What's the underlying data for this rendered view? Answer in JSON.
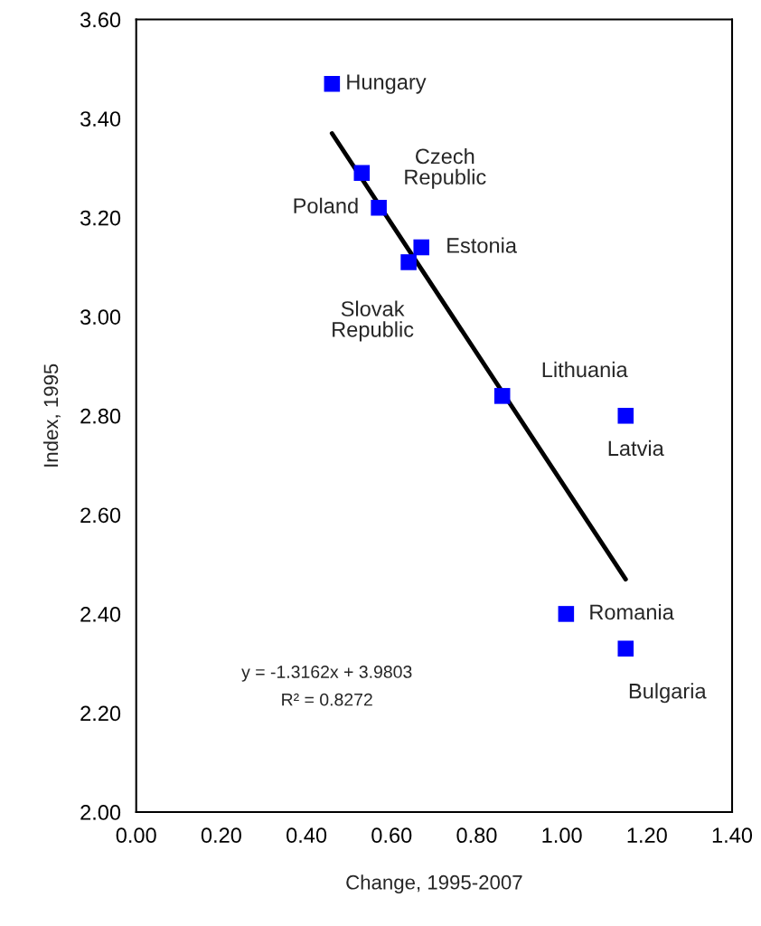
{
  "chart_data": {
    "type": "scatter",
    "xlabel": "Change, 1995-2007",
    "ylabel": "Index, 1995",
    "xlim": [
      0,
      1.4
    ],
    "ylim": [
      2.0,
      3.6
    ],
    "xticks": [
      {
        "value": 0,
        "label": "0.00"
      },
      {
        "value": 0.2,
        "label": "0.20"
      },
      {
        "value": 0.4,
        "label": "0.40"
      },
      {
        "value": 0.6,
        "label": "0.60"
      },
      {
        "value": 0.8,
        "label": "0.80"
      },
      {
        "value": 1.0,
        "label": "1.00"
      },
      {
        "value": 1.2,
        "label": "1.20"
      },
      {
        "value": 1.4,
        "label": "1.40"
      }
    ],
    "yticks": [
      {
        "value": 2.0,
        "label": "2.00"
      },
      {
        "value": 2.2,
        "label": "2.20"
      },
      {
        "value": 2.4,
        "label": "2.40"
      },
      {
        "value": 2.6,
        "label": "2.60"
      },
      {
        "value": 2.8,
        "label": "2.80"
      },
      {
        "value": 3.0,
        "label": "3.00"
      },
      {
        "value": 3.2,
        "label": "3.20"
      },
      {
        "value": 3.4,
        "label": "3.40"
      },
      {
        "value": 3.6,
        "label": "3.60"
      }
    ],
    "grid": false,
    "legend": false,
    "marker": "square",
    "series": [
      {
        "color": "#0000ff",
        "x": [
          0.46,
          0.53,
          0.57,
          0.67,
          0.64,
          0.86,
          1.15,
          1.01,
          1.15
        ],
        "values": [
          3.47,
          3.29,
          3.22,
          3.14,
          3.11,
          2.84,
          2.8,
          2.4,
          2.33
        ]
      },
      {
        "type": "line",
        "color": "#000000",
        "marker": "none",
        "line_style": "solid",
        "x": [
          0.46,
          1.15
        ],
        "values": [
          3.37,
          2.47
        ]
      }
    ],
    "annotations": [
      {
        "text": "Hungary",
        "x": 0.46,
        "y": 3.47
      },
      {
        "text": "Czech\nRepublic",
        "x": 0.53,
        "y": 3.29
      },
      {
        "text": "Poland",
        "x": 0.57,
        "y": 3.22
      },
      {
        "text": "Estonia",
        "x": 0.67,
        "y": 3.14
      },
      {
        "text": "Slovak\nRepublic",
        "x": 0.64,
        "y": 3.11
      },
      {
        "text": "Lithuania",
        "x": 0.86,
        "y": 2.84
      },
      {
        "text": "Latvia",
        "x": 1.15,
        "y": 2.8
      },
      {
        "text": "Romania",
        "x": 1.01,
        "y": 2.4
      },
      {
        "text": "Bulgaria",
        "x": 1.15,
        "y": 2.33
      },
      "y = -1.3162x + 3.9803",
      "R² = 0.8272"
    ]
  }
}
